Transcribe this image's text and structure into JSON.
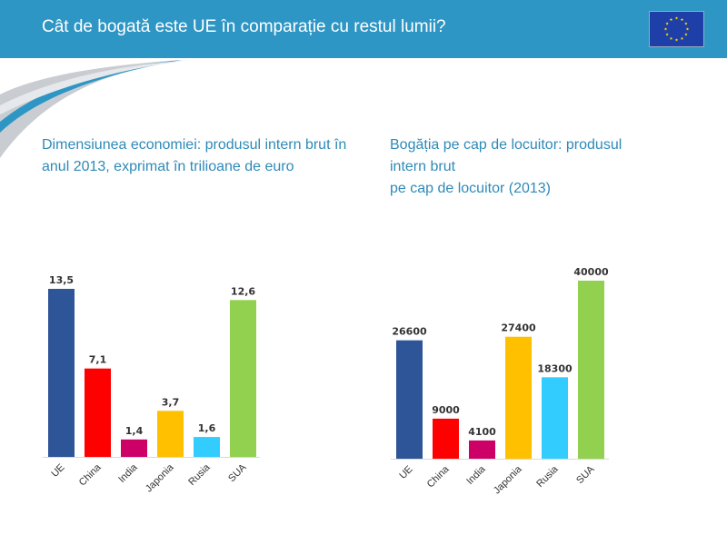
{
  "header": {
    "title": "Cât de bogată este UE în comparație cu restul lumii?",
    "flag_icon": "eu-flag-icon"
  },
  "colors": {
    "header_bg": "#2e96c4",
    "subtitle": "#2e8ab8",
    "bars": [
      "#2e5597",
      "#ff0000",
      "#cc0066",
      "#ffc000",
      "#33ccff",
      "#92d050"
    ]
  },
  "chart_data": [
    {
      "type": "bar",
      "title_lines": [
        "Dimensiunea economiei: produsul intern brut în",
        "anul 2013, exprimat în trilioane de euro"
      ],
      "categories": [
        "UE",
        "China",
        "India",
        "Japonia",
        "Rusia",
        "SUA"
      ],
      "values": [
        13.5,
        7.1,
        1.4,
        3.7,
        1.6,
        12.6
      ],
      "value_labels": [
        "13,5",
        "7,1",
        "1,4",
        "3,7",
        "1,6",
        "12,6"
      ],
      "ylim": [
        0,
        15
      ],
      "grid": false,
      "legend": "none"
    },
    {
      "type": "bar",
      "title_lines": [
        "Bogăția pe cap de locuitor: produsul",
        "intern brut",
        "pe cap de locuitor (2013)"
      ],
      "categories": [
        "UE",
        "China",
        "India",
        "Japonia",
        "Rusia",
        "SUA"
      ],
      "values": [
        26600,
        9000,
        4100,
        27400,
        18300,
        40000
      ],
      "value_labels": [
        "26600",
        "9000",
        "4100",
        "27400",
        "18300",
        "40000"
      ],
      "ylim": [
        0,
        42000
      ],
      "grid": false,
      "legend": "none"
    }
  ]
}
